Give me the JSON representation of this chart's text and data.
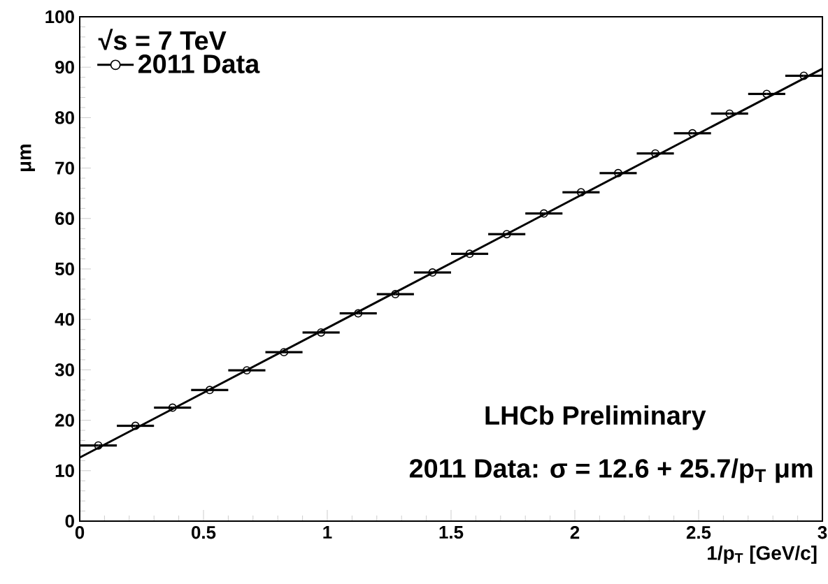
{
  "chart_data": {
    "type": "scatter",
    "xlabel": "1/p$_{T}$ [GeV/c]",
    "ylabel": "μm",
    "legend_title": "√s = 7 TeV",
    "annotations": [
      "LHCb Preliminary",
      "2011 Data: σ = 12.6 + 25.7/p$_{T}$ μm"
    ],
    "xlim": [
      0,
      3
    ],
    "ylim": [
      0,
      100
    ],
    "xticks": [
      0,
      0.5,
      1,
      1.5,
      2,
      2.5,
      3
    ],
    "yticks": [
      0,
      10,
      20,
      30,
      40,
      50,
      60,
      70,
      80,
      90,
      100
    ],
    "legend": "top left",
    "marker": "circle",
    "series": [
      {
        "name": "2011 Data",
        "color": "#000000",
        "x": [
          0.075,
          0.225,
          0.375,
          0.525,
          0.675,
          0.825,
          0.975,
          1.125,
          1.275,
          1.425,
          1.575,
          1.725,
          1.875,
          2.025,
          2.175,
          2.325,
          2.475,
          2.625,
          2.775,
          2.925
        ],
        "values": [
          15.0,
          18.9,
          22.5,
          26.0,
          29.9,
          33.5,
          37.4,
          41.2,
          45.0,
          49.3,
          53.0,
          56.9,
          61.0,
          65.2,
          69.0,
          72.9,
          76.9,
          80.8,
          84.7,
          88.3
        ],
        "xerrors": [
          0.075,
          0.075,
          0.075,
          0.075,
          0.075,
          0.075,
          0.075,
          0.075,
          0.075,
          0.075,
          0.075,
          0.075,
          0.075,
          0.075,
          0.075,
          0.075,
          0.075,
          0.075,
          0.075,
          0.075
        ]
      },
      {
        "type": "line",
        "color": "#000000",
        "marker": "none",
        "x": [
          0,
          3
        ],
        "values": [
          12.6,
          89.7
        ]
      }
    ]
  }
}
